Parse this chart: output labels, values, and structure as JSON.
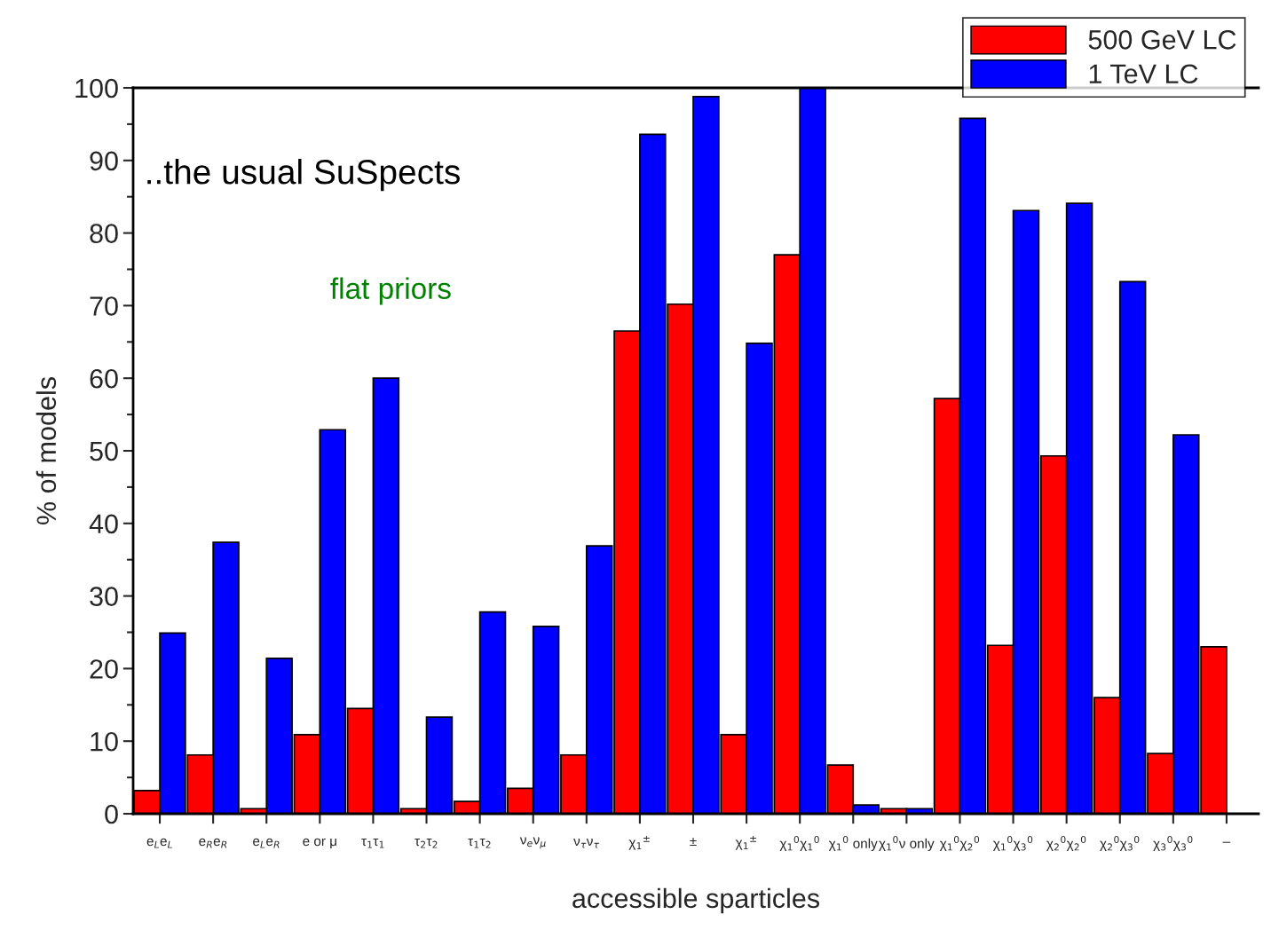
{
  "chart_data": {
    "type": "bar",
    "xlabel": "accessible sparticles",
    "ylabel": "% of models",
    "categories": [
      "e$_{L}$e$_{L}$",
      "e$_{R}$e$_{R}$",
      "e$_{L}$e$_{R}$",
      "e or μ",
      "τ$_{1}$τ$_{1}$",
      "τ$_{2}$τ$_{2}$",
      "τ$_{1}$τ$_{2}$",
      "ν$_{e}$ν$_{μ}$",
      "ν$_{τ}$ν$_{τ}$",
      "χ$_{1}$$^{±}$",
      "±",
      "χ$_{1}$$^{±}$",
      "χ$_{1}$$^{0}$χ$_{1}$$^{0}$",
      "χ$_{1}$$^{0}$ only",
      "χ$_{1}$$^{0}$ν only",
      "χ$_{1}$$^{0}$χ$_{2}$$^{0}$",
      "χ$_{1}$$^{0}$χ$_{3}$$^{0}$",
      "χ$_{2}$$^{0}$χ$_{2}$$^{0}$",
      "χ$_{2}$$^{0}$χ$_{3}$$^{0}$",
      "χ$_{3}$$^{0}$χ$_{3}$$^{0}$",
      "–"
    ],
    "series": [
      {
        "name": "500 GeV LC",
        "color": "#ff0000",
        "values": [
          3.2,
          8.1,
          0.7,
          10.9,
          14.5,
          0.7,
          1.7,
          3.5,
          8.1,
          66.5,
          70.2,
          10.9,
          77.0,
          6.7,
          0.7,
          57.2,
          23.2,
          49.3,
          16.0,
          8.3,
          23.0
        ]
      },
      {
        "name": "1 TeV LC",
        "color": "#0000ff",
        "values": [
          24.9,
          37.4,
          21.4,
          52.9,
          60.0,
          13.3,
          27.8,
          25.8,
          36.9,
          93.6,
          98.8,
          64.8,
          100,
          1.2,
          0.7,
          95.8,
          83.1,
          84.1,
          73.3,
          52.2,
          null
        ]
      }
    ],
    "ylim": [
      0,
      100
    ],
    "yticks": [
      0,
      10,
      20,
      30,
      40,
      50,
      60,
      70,
      80,
      90,
      100
    ],
    "grid": false,
    "legend": "top right",
    "annotations": [
      "..the usual SuSpects",
      "flat priors"
    ]
  }
}
